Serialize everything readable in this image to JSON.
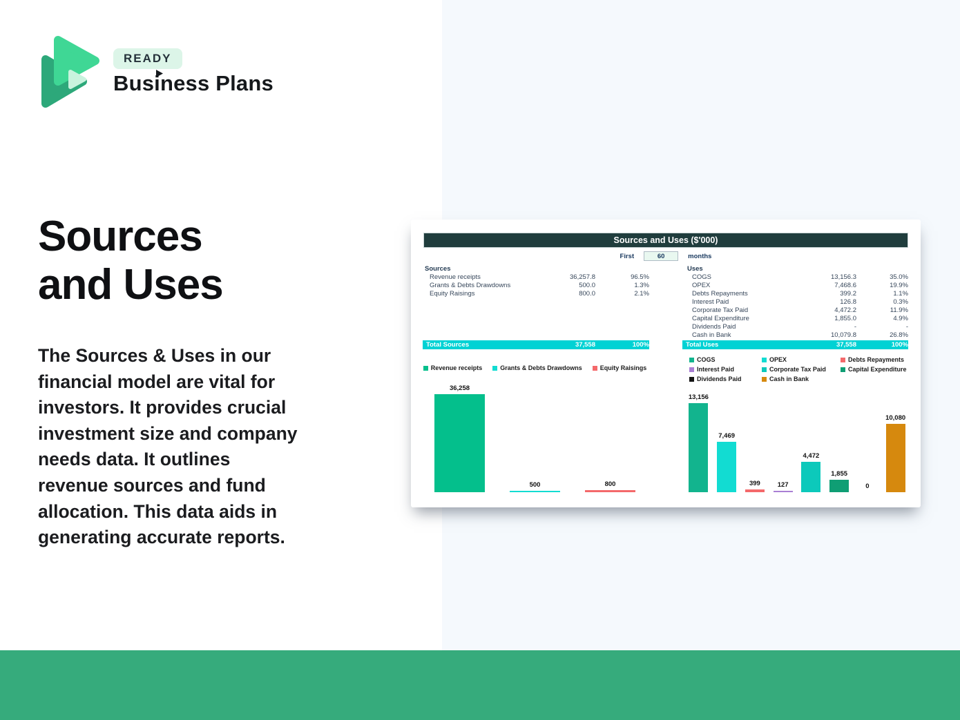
{
  "brand": {
    "badge": "READY",
    "name": "Business Plans"
  },
  "hero": {
    "title": "Sources\nand Uses",
    "description": "The Sources & Uses in our\nfinancial model are vital for\ninvestors. It provides crucial\ninvestment size and company\nneeds data. It outlines\nrevenue sources and fund\nallocation. This data aids in\ngenerating accurate reports."
  },
  "spreadsheet": {
    "title": "Sources and Uses ($'000)",
    "period": {
      "prefix": "First",
      "value": "60",
      "suffix": "months"
    },
    "sources": {
      "header": "Sources",
      "rows": [
        {
          "label": "Revenue receipts",
          "value": "36,257.8",
          "pct": "96.5%"
        },
        {
          "label": "Grants & Debts Drawdowns",
          "value": "500.0",
          "pct": "1.3%"
        },
        {
          "label": "Equity Raisings",
          "value": "800.0",
          "pct": "2.1%"
        }
      ],
      "total": {
        "label": "Total Sources",
        "value": "37,558",
        "pct": "100%"
      }
    },
    "uses": {
      "header": "Uses",
      "rows": [
        {
          "label": "COGS",
          "value": "13,156.3",
          "pct": "35.0%"
        },
        {
          "label": "OPEX",
          "value": "7,468.6",
          "pct": "19.9%"
        },
        {
          "label": "Debts Repayments",
          "value": "399.2",
          "pct": "1.1%"
        },
        {
          "label": "Interest Paid",
          "value": "126.8",
          "pct": "0.3%"
        },
        {
          "label": "Corporate Tax Paid",
          "value": "4,472.2",
          "pct": "11.9%"
        },
        {
          "label": "Capital Expenditure",
          "value": "1,855.0",
          "pct": "4.9%"
        },
        {
          "label": "Dividends Paid",
          "value": "-",
          "pct": "-"
        },
        {
          "label": "Cash in Bank",
          "value": "10,079.8",
          "pct": "26.8%"
        }
      ],
      "total": {
        "label": "Total Uses",
        "value": "37,558",
        "pct": "100%"
      }
    }
  },
  "chart_data": [
    {
      "type": "bar",
      "title": "Sources",
      "categories": [
        "Revenue receipts",
        "Grants & Debts Drawdowns",
        "Equity Raisings"
      ],
      "values": [
        36258,
        500,
        800
      ],
      "data_labels": [
        "36,258",
        "500",
        "800"
      ],
      "colors": [
        "#04bf8c",
        "#12dcd2",
        "#f4696b"
      ],
      "legend_position": "top",
      "grid": false,
      "ylim": [
        0,
        36258
      ]
    },
    {
      "type": "bar",
      "title": "Uses",
      "categories": [
        "COGS",
        "OPEX",
        "Debts Repayments",
        "Interest Paid",
        "Corporate Tax Paid",
        "Capital Expenditure",
        "Dividends Paid",
        "Cash in Bank"
      ],
      "values": [
        13156,
        7469,
        399,
        127,
        4472,
        1855,
        0,
        10080
      ],
      "data_labels": [
        "13,156",
        "7,469",
        "399",
        "127",
        "4,472",
        "1,855",
        "0",
        "10,080"
      ],
      "colors": [
        "#12b48e",
        "#12dcd2",
        "#f4696b",
        "#a97fd4",
        "#0cc9bb",
        "#0f9e74",
        "#141414",
        "#d6890e"
      ],
      "legend_position": "top",
      "grid": false,
      "ylim": [
        0,
        13156
      ]
    }
  ],
  "colors": {
    "footer_bar": "#36ab7c",
    "right_panel": "#f5f9fd",
    "sheet_header": "#203d3d",
    "total_row": "#00d2d4",
    "badge_bg": "#dcf5e8"
  }
}
